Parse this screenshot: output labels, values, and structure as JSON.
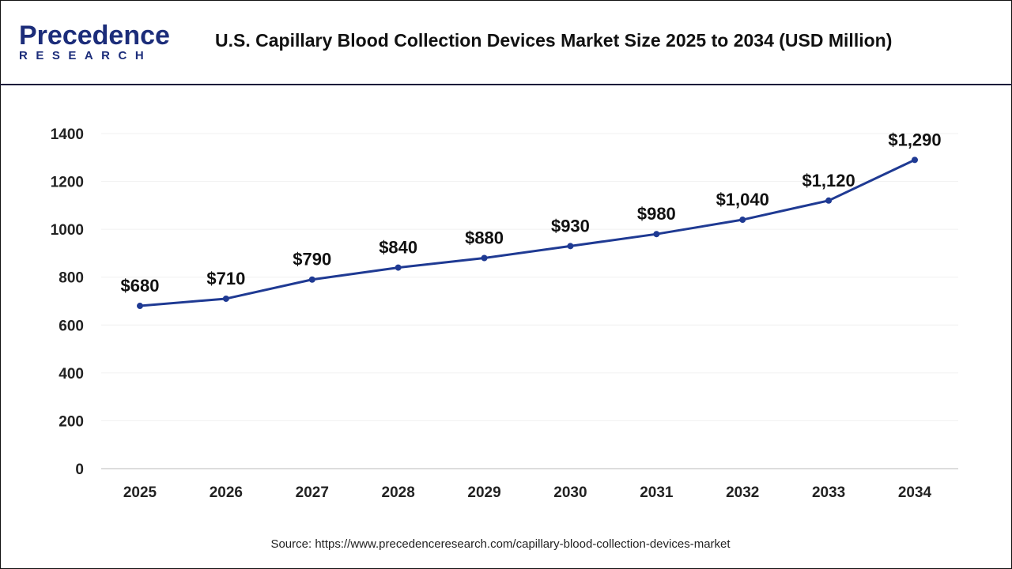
{
  "logo": {
    "main": "Precedence",
    "sub": "RESEARCH"
  },
  "title": "U.S. Capillary Blood Collection Devices Market Size 2025 to 2034 (USD Million)",
  "source": "Source: https://www.precedenceresearch.com/capillary-blood-collection-devices-market",
  "chart_data": {
    "type": "line",
    "title": "U.S. Capillary Blood Collection Devices Market Size 2025 to 2034 (USD Million)",
    "categories": [
      "2025",
      "2026",
      "2027",
      "2028",
      "2029",
      "2030",
      "2031",
      "2032",
      "2033",
      "2034"
    ],
    "values": [
      680,
      710,
      790,
      840,
      880,
      930,
      980,
      1040,
      1120,
      1290
    ],
    "data_labels": [
      "$680",
      "$710",
      "$790",
      "$840",
      "$880",
      "$930",
      "$980",
      "$1,040",
      "$1,120",
      "$1,290"
    ],
    "yticks": [
      0,
      200,
      400,
      600,
      800,
      1000,
      1200,
      1400
    ],
    "ylim": [
      0,
      1400
    ],
    "grid": true,
    "line_color": "#1f3a93"
  }
}
